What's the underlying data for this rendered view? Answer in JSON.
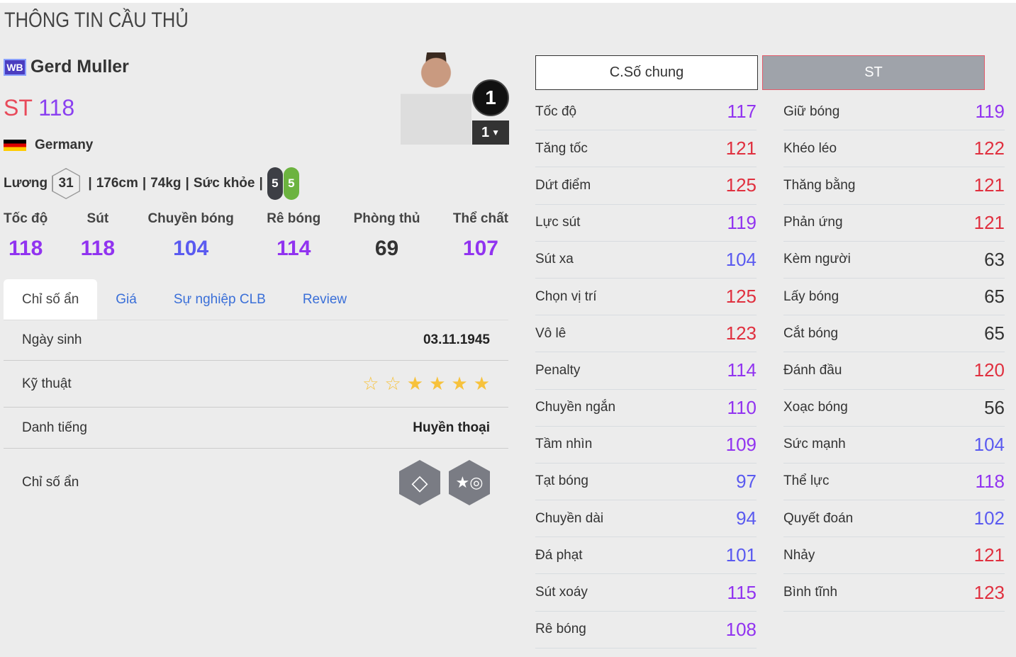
{
  "page_title": "THÔNG TIN CẦU THỦ",
  "player": {
    "season_badge": "WB",
    "name": "Gerd Muller",
    "position": "ST",
    "overall": "118",
    "nation": "Germany",
    "salary_label": "Lương",
    "salary": "31",
    "height": "176cm",
    "weight": "74kg",
    "health_label": "Sức khỏe",
    "left_foot": "5",
    "right_foot": "5",
    "rank": "1",
    "level": "1"
  },
  "summary": [
    {
      "label": "Tốc độ",
      "value": "118"
    },
    {
      "label": "Sút",
      "value": "118"
    },
    {
      "label": "Chuyền bóng",
      "value": "104"
    },
    {
      "label": "Rê bóng",
      "value": "114"
    },
    {
      "label": "Phòng thủ",
      "value": "69"
    },
    {
      "label": "Thể chất",
      "value": "107"
    }
  ],
  "tabs": [
    "Chỉ số ẩn",
    "Giá",
    "Sự nghiệp CLB",
    "Review"
  ],
  "details": {
    "birth_label": "Ngày sinh",
    "birth": "03.11.1945",
    "skill_label": "Kỹ thuật",
    "skill_stars": 4,
    "skill_max": 6,
    "fame_label": "Danh tiếng",
    "fame": "Huyền thoại",
    "hidden_label": "Chỉ số ẩn",
    "hidden_icons": [
      "diamond-icon",
      "boot-icon"
    ]
  },
  "buttons": [
    "C.Số chung",
    "ST"
  ],
  "colors": {
    "red": "#e0303f",
    "purple": "#9133f0",
    "blue": "#5a5af0",
    "dark": "#333333",
    "star": "#f7c23c"
  },
  "stats_left": [
    {
      "label": "Tốc độ",
      "value": "117"
    },
    {
      "label": "Tăng tốc",
      "value": "121"
    },
    {
      "label": "Dứt điểm",
      "value": "125"
    },
    {
      "label": "Lực sút",
      "value": "119"
    },
    {
      "label": "Sút xa",
      "value": "104"
    },
    {
      "label": "Chọn vị trí",
      "value": "125"
    },
    {
      "label": "Vô lê",
      "value": "123"
    },
    {
      "label": "Penalty",
      "value": "114"
    },
    {
      "label": "Chuyền ngắn",
      "value": "110"
    },
    {
      "label": "Tầm nhìn",
      "value": "109"
    },
    {
      "label": "Tạt bóng",
      "value": "97"
    },
    {
      "label": "Chuyền dài",
      "value": "94"
    },
    {
      "label": "Đá phạt",
      "value": "101"
    },
    {
      "label": "Sút xoáy",
      "value": "115"
    },
    {
      "label": "Rê bóng",
      "value": "108"
    }
  ],
  "stats_right": [
    {
      "label": "Giữ bóng",
      "value": "119"
    },
    {
      "label": "Khéo léo",
      "value": "122"
    },
    {
      "label": "Thăng bằng",
      "value": "121"
    },
    {
      "label": "Phản ứng",
      "value": "121"
    },
    {
      "label": "Kèm người",
      "value": "63"
    },
    {
      "label": "Lấy bóng",
      "value": "65"
    },
    {
      "label": "Cắt bóng",
      "value": "65"
    },
    {
      "label": "Đánh đầu",
      "value": "120"
    },
    {
      "label": "Xoạc bóng",
      "value": "56"
    },
    {
      "label": "Sức mạnh",
      "value": "104"
    },
    {
      "label": "Thể lực",
      "value": "118"
    },
    {
      "label": "Quyết đoán",
      "value": "102"
    },
    {
      "label": "Nhảy",
      "value": "121"
    },
    {
      "label": "Bình tĩnh",
      "value": "123"
    }
  ]
}
